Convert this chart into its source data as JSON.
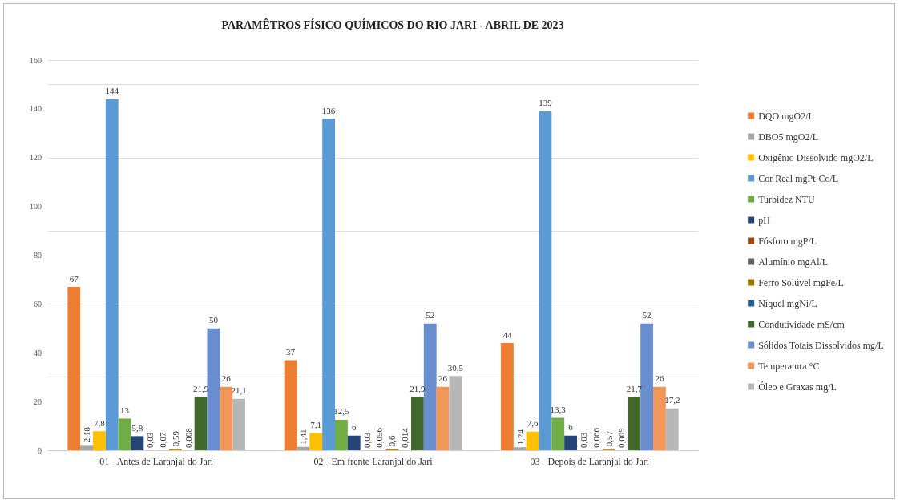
{
  "chart_data": {
    "type": "bar",
    "title": "PARAMÊTROS FÍSICO QUÍMICOS DO RIO JARI - ABRIL DE 2023",
    "categories": [
      "01 - Antes de Laranjal do Jari",
      "02 - Em frente Laranjal do Jari",
      "03 - Depois de Laranjal do Jari"
    ],
    "series": [
      {
        "name": "DQO mgO2/L",
        "color": "#ed7d31",
        "values": [
          67,
          37,
          44
        ],
        "value_labels": [
          "67",
          "37",
          "44"
        ]
      },
      {
        "name": "DBO5 mgO2/L",
        "color": "#a5a5a5",
        "values": [
          2.18,
          1.41,
          1.24
        ],
        "value_labels": [
          "2,18",
          "1,41",
          "1,24"
        ]
      },
      {
        "name": "Oxigênio Dissolvido mgO2/L",
        "color": "#ffc000",
        "values": [
          7.8,
          7.1,
          7.6
        ],
        "value_labels": [
          "7,8",
          "7,1",
          "7,6"
        ]
      },
      {
        "name": "Cor Real mgPt-Co/L",
        "color": "#5b9bd5",
        "values": [
          144,
          136,
          139
        ],
        "value_labels": [
          "144",
          "136",
          "139"
        ]
      },
      {
        "name": "Turbidez NTU",
        "color": "#70ad47",
        "values": [
          13,
          12.5,
          13.3
        ],
        "value_labels": [
          "13",
          "12,5",
          "13,3"
        ]
      },
      {
        "name": "pH",
        "color": "#264478",
        "values": [
          5.8,
          6,
          6
        ],
        "value_labels": [
          "5,8",
          "6",
          "6"
        ]
      },
      {
        "name": "Fósforo mgP/L",
        "color": "#9e480e",
        "values": [
          0.03,
          0.03,
          0.03
        ],
        "value_labels": [
          "0,03",
          "0,03",
          "0,03"
        ]
      },
      {
        "name": "Alumínio mgAl/L",
        "color": "#636363",
        "values": [
          0.07,
          0.056,
          0.066
        ],
        "value_labels": [
          "0,07",
          "0,056",
          "0,066"
        ]
      },
      {
        "name": "Ferro Solúvel mgFe/L",
        "color": "#997300",
        "values": [
          0.59,
          0.6,
          0.57
        ],
        "value_labels": [
          "0,59",
          "0,6",
          "0,57"
        ]
      },
      {
        "name": "Níquel mgNi/L",
        "color": "#255e91",
        "values": [
          0.008,
          0.014,
          0.009
        ],
        "value_labels": [
          "0,008",
          "0,014",
          "0,009"
        ]
      },
      {
        "name": "Condutividade mS/cm",
        "color": "#43682b",
        "values": [
          21.9,
          21.9,
          21.7
        ],
        "value_labels": [
          "21,9",
          "21,9",
          "21,7"
        ]
      },
      {
        "name": "Sólidos Totais Dissolvidos mg/L",
        "color": "#698ed0",
        "values": [
          50,
          52,
          52
        ],
        "value_labels": [
          "50",
          "52",
          "52"
        ]
      },
      {
        "name": "Temperatura °C",
        "color": "#f1975a",
        "values": [
          26,
          26,
          26
        ],
        "value_labels": [
          "26",
          "26",
          "26"
        ]
      },
      {
        "name": "Óleo e Graxas mg/L",
        "color": "#b7b7b7",
        "values": [
          21.1,
          30.5,
          17.2
        ],
        "value_labels": [
          "21,1",
          "30,5",
          "17,2"
        ]
      }
    ],
    "ylim": [
      0,
      160
    ],
    "yticks": [
      0,
      20,
      40,
      60,
      80,
      100,
      120,
      140,
      160
    ],
    "grid": "y",
    "legend": "right"
  }
}
